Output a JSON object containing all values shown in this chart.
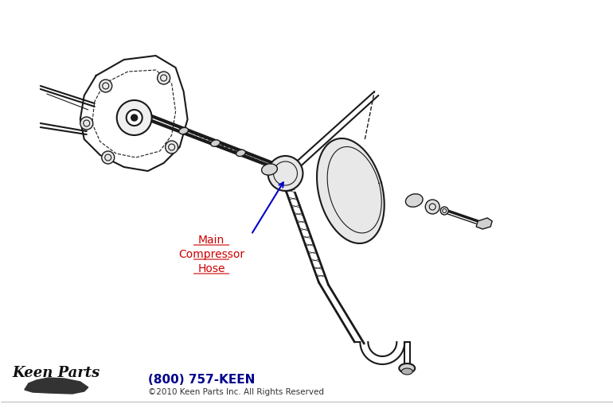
{
  "bg_color": "#ffffff",
  "line_color": "#1a1a1a",
  "label_color": "#cc0000",
  "arrow_color": "#0000cc",
  "phone_color": "#00008B",
  "copyright_color": "#333333",
  "label_text": [
    "Main",
    "Compressor",
    "Hose"
  ],
  "phone_text": "(800) 757-KEEN",
  "copyright_text": "©2010 Keen Parts Inc. All Rights Reserved",
  "figsize": [
    7.7,
    5.18
  ],
  "dpi": 100
}
